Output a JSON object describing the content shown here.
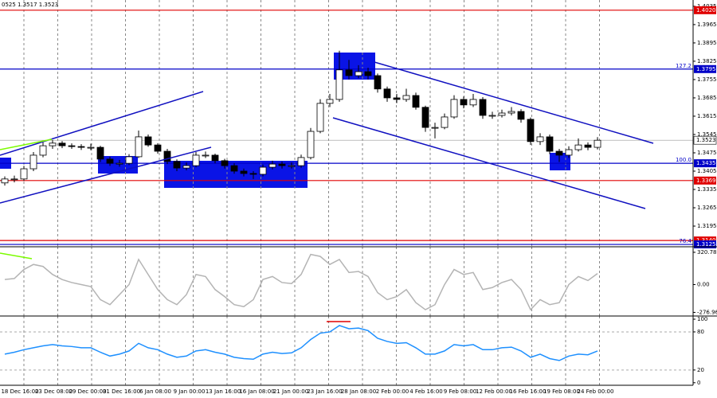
{
  "chart_data": [
    {
      "type": "candlestick",
      "title": "0525 1.3517 1.3523",
      "categories": [
        "18 Dec 16:00",
        "23 Dec 08:00",
        "29 Dec 00:00",
        "31 Dec 16:00",
        "6 Jan 08:00",
        "9 Jan 00:00",
        "13 Jan 16:00",
        "16 Jan 08:00",
        "21 Jan 00:00",
        "23 Jan 16:00",
        "28 Jan 08:00",
        "2 Feb 00:00",
        "4 Feb 16:00",
        "9 Feb 08:00",
        "12 Feb 00:00",
        "16 Feb 16:00",
        "19 Feb 08:00",
        "24 Feb 00:00"
      ],
      "open": [
        1.336,
        1.3375,
        1.3375,
        1.3414,
        1.3466,
        1.3502,
        1.3512,
        1.3502,
        1.3499,
        1.3496,
        1.3496,
        1.3451,
        1.3435,
        1.3435,
        1.346,
        1.3536,
        1.3505,
        1.3481,
        1.3442,
        1.3417,
        1.3426,
        1.3466,
        1.3466,
        1.3445,
        1.3426,
        1.3405,
        1.3396,
        1.3393,
        1.342,
        1.3432,
        1.3426,
        1.3426,
        1.3457,
        1.3557,
        1.3664,
        1.3679,
        1.3792,
        1.377,
        1.3785,
        1.377,
        1.3719,
        1.3685,
        1.3679,
        1.3694,
        1.3649,
        1.3572,
        1.3572,
        1.3612,
        1.3679,
        1.3658,
        1.3679,
        1.3618,
        1.3618,
        1.3627,
        1.3633,
        1.3603,
        1.3518,
        1.3536,
        1.3481,
        1.3466,
        1.3487,
        1.3505,
        1.3496
      ],
      "high": [
        1.3385,
        1.3388,
        1.3425,
        1.3478,
        1.3515,
        1.3524,
        1.352,
        1.3511,
        1.3508,
        1.351,
        1.3502,
        1.346,
        1.3448,
        1.347,
        1.356,
        1.3545,
        1.3512,
        1.349,
        1.345,
        1.3438,
        1.3478,
        1.348,
        1.3472,
        1.3452,
        1.3435,
        1.3415,
        1.3405,
        1.343,
        1.3445,
        1.3442,
        1.3438,
        1.3468,
        1.357,
        1.368,
        1.37,
        1.3865,
        1.383,
        1.381,
        1.38,
        1.3778,
        1.3728,
        1.37,
        1.372,
        1.3705,
        1.3655,
        1.359,
        1.3625,
        1.3695,
        1.369,
        1.37,
        1.3688,
        1.3632,
        1.364,
        1.365,
        1.3642,
        1.361,
        1.355,
        1.3545,
        1.349,
        1.35,
        1.353,
        1.3515,
        1.3535
      ],
      "low": [
        1.335,
        1.3362,
        1.3368,
        1.3405,
        1.3458,
        1.349,
        1.3493,
        1.349,
        1.3486,
        1.3485,
        1.344,
        1.3425,
        1.3422,
        1.3428,
        1.3455,
        1.3498,
        1.3472,
        1.3432,
        1.3405,
        1.3408,
        1.342,
        1.3455,
        1.3435,
        1.3415,
        1.3395,
        1.3385,
        1.3375,
        1.3385,
        1.3412,
        1.3415,
        1.3415,
        1.3418,
        1.345,
        1.355,
        1.365,
        1.367,
        1.3755,
        1.376,
        1.3755,
        1.3705,
        1.367,
        1.3665,
        1.367,
        1.364,
        1.3555,
        1.353,
        1.3565,
        1.3605,
        1.3645,
        1.365,
        1.3605,
        1.3605,
        1.361,
        1.3618,
        1.359,
        1.3505,
        1.3505,
        1.347,
        1.344,
        1.3455,
        1.348,
        1.3485,
        1.3488
      ],
      "close": [
        1.3375,
        1.3375,
        1.3414,
        1.3466,
        1.3502,
        1.3512,
        1.3502,
        1.3499,
        1.3496,
        1.3496,
        1.3451,
        1.3435,
        1.3435,
        1.346,
        1.3536,
        1.3505,
        1.3481,
        1.3442,
        1.3417,
        1.3426,
        1.3466,
        1.3466,
        1.3445,
        1.3426,
        1.3405,
        1.3396,
        1.3393,
        1.342,
        1.3432,
        1.3426,
        1.3426,
        1.3457,
        1.3557,
        1.3664,
        1.3679,
        1.3792,
        1.377,
        1.3785,
        1.377,
        1.3719,
        1.3685,
        1.3679,
        1.3694,
        1.3649,
        1.3572,
        1.3572,
        1.3612,
        1.3679,
        1.3658,
        1.3679,
        1.3618,
        1.3618,
        1.3627,
        1.3633,
        1.3603,
        1.3518,
        1.3536,
        1.3481,
        1.3466,
        1.3487,
        1.3505,
        1.3496,
        1.3523
      ],
      "color": "#000000",
      "ylim": [
        1.3116,
        1.4059
      ],
      "yticks": [
        1.4035,
        1.3965,
        1.3895,
        1.3825,
        1.3755,
        1.3685,
        1.3615,
        1.3545,
        1.3475,
        1.3405,
        1.3335,
        1.3265,
        1.3195
      ],
      "levels": [
        {
          "value": 1.402,
          "label": "1.4020",
          "color": "#e00000"
        },
        {
          "value": 1.3795,
          "label": "1.3795",
          "color": "#0000c8",
          "fib": "127.2"
        },
        {
          "value": 1.3523,
          "label": "1.3523",
          "color": "#ffffff"
        },
        {
          "value": 1.3435,
          "label": "1.3435",
          "color": "#0000c8",
          "fib": "100.0"
        },
        {
          "value": 1.3369,
          "label": "1.3369",
          "color": "#e00000"
        },
        {
          "value": 1.314,
          "label": "1.3140",
          "color": "#e00000"
        },
        {
          "value": 1.3125,
          "label": "1.3125",
          "color": "#0000c8",
          "fib": "76.4"
        }
      ],
      "grid": true
    },
    {
      "type": "line",
      "values": [
        50,
        60,
        150,
        200,
        180,
        100,
        50,
        20,
        0,
        -20,
        -150,
        -200,
        -100,
        0,
        250,
        100,
        -50,
        -150,
        -200,
        -100,
        100,
        80,
        -50,
        -120,
        -200,
        -220,
        -150,
        50,
        80,
        20,
        10,
        100,
        300,
        280,
        200,
        250,
        120,
        130,
        80,
        -80,
        -150,
        -120,
        -50,
        -180,
        -250,
        -200,
        0,
        150,
        100,
        120,
        -50,
        -30,
        20,
        50,
        -50,
        -250,
        -150,
        -200,
        -180,
        0,
        80,
        40,
        110
      ],
      "color": "#b4b4b4",
      "ylim": [
        -313,
        376
      ],
      "yticks": [
        320.7896,
        {
          "value": 0,
          "label": "0.00"
        },
        {
          "value": -276.96,
          "label": "-276.960"
        }
      ]
    },
    {
      "type": "line",
      "values": [
        45,
        48,
        52,
        55,
        58,
        60,
        58,
        57,
        55,
        55,
        48,
        42,
        45,
        50,
        62,
        55,
        52,
        45,
        40,
        42,
        50,
        52,
        48,
        45,
        40,
        38,
        37,
        45,
        48,
        46,
        47,
        55,
        68,
        78,
        80,
        90,
        85,
        86,
        82,
        70,
        65,
        62,
        63,
        55,
        45,
        45,
        50,
        60,
        58,
        60,
        52,
        52,
        55,
        56,
        50,
        40,
        45,
        38,
        35,
        42,
        45,
        44,
        50
      ],
      "color": "#1e90ff",
      "ylim": [
        -4,
        105
      ],
      "yticks": [
        100,
        80,
        20,
        0
      ]
    }
  ]
}
